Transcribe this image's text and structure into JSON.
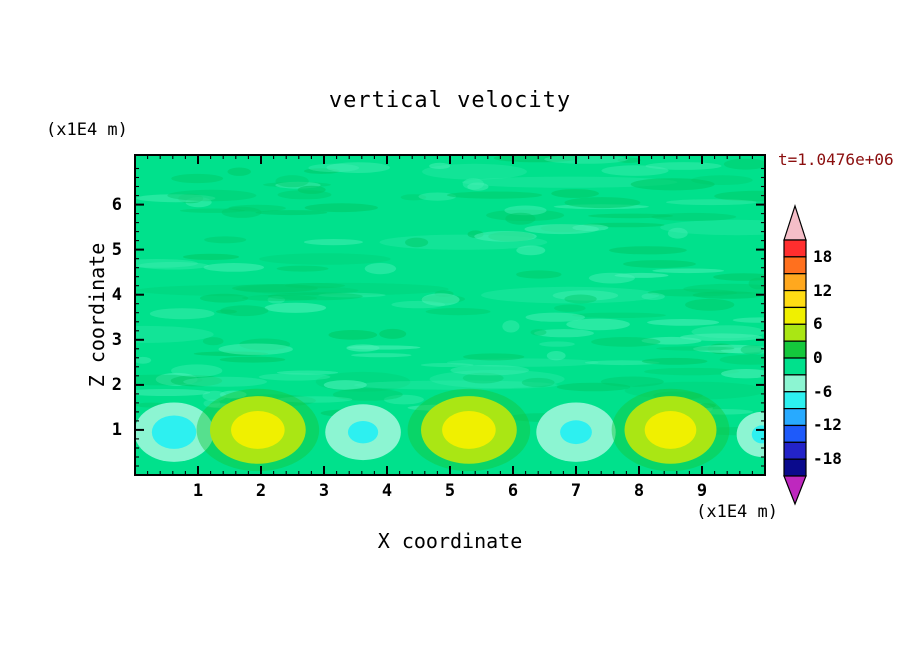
{
  "chart_data": {
    "type": "heatmap",
    "title": "vertical velocity",
    "time_annotation": "t=1.0476e+06",
    "time_color": "#8B0E0E",
    "xlabel": "X coordinate",
    "x_unit": "(x1E4 m)",
    "ylabel": "Z coordinate",
    "y_unit": "(x1E4 m)",
    "xlim": [
      0,
      10
    ],
    "ylim": [
      0,
      7.1
    ],
    "x_ticks": [
      1,
      2,
      3,
      4,
      5,
      6,
      7,
      8,
      9
    ],
    "y_ticks": [
      1,
      2,
      3,
      4,
      5,
      6
    ],
    "contour_interval": 3,
    "colorbar": {
      "labels": [
        18,
        12,
        6,
        0,
        -6,
        -12,
        -18
      ],
      "value_top": 21,
      "value_bottom": -21,
      "boxes": [
        {
          "range": [
            18,
            21
          ],
          "color": "#FF2E2E"
        },
        {
          "range": [
            15,
            18
          ],
          "color": "#FF701E"
        },
        {
          "range": [
            12,
            15
          ],
          "color": "#FFA81E"
        },
        {
          "range": [
            9,
            12
          ],
          "color": "#FFDC14"
        },
        {
          "range": [
            6,
            9
          ],
          "color": "#F0F000"
        },
        {
          "range": [
            3,
            6
          ],
          "color": "#AAE614"
        },
        {
          "range": [
            0,
            3
          ],
          "color": "#14C83C"
        },
        {
          "range": [
            -3,
            0
          ],
          "color": "#00E18C"
        },
        {
          "range": [
            -6,
            -3
          ],
          "color": "#8CF5D2"
        },
        {
          "range": [
            -9,
            -6
          ],
          "color": "#2DF0F0"
        },
        {
          "range": [
            -12,
            -9
          ],
          "color": "#28AAFF"
        },
        {
          "range": [
            -15,
            -12
          ],
          "color": "#1E5AFA"
        },
        {
          "range": [
            -18,
            -15
          ],
          "color": "#2323C8"
        },
        {
          "range": [
            -21,
            -18
          ],
          "color": "#0A0A8C"
        }
      ],
      "over_color": "#F5BEC8",
      "under_color": "#BE28BE"
    },
    "field": {
      "description": "Near-zero vertical velocity aloft with mottled +/-3 noise; alternating rising (positive, yellow) and sinking (negative, cyan) convective cells centered near z=1",
      "background_band": [
        -3,
        0
      ],
      "base_color": "#00E18C",
      "mottle_dark": "#00C968",
      "mottle_light": "#49F0B6",
      "cells": [
        {
          "x": 0.62,
          "z": 0.95,
          "peak": -9,
          "rx": 0.63,
          "rz": 0.66
        },
        {
          "x": 1.95,
          "z": 1.0,
          "peak": 10,
          "rx": 0.76,
          "rz": 0.75
        },
        {
          "x": 3.62,
          "z": 0.95,
          "peak": -7,
          "rx": 0.6,
          "rz": 0.62
        },
        {
          "x": 5.3,
          "z": 1.0,
          "peak": 10,
          "rx": 0.76,
          "rz": 0.75
        },
        {
          "x": 7.0,
          "z": 0.95,
          "peak": -8,
          "rx": 0.63,
          "rz": 0.66
        },
        {
          "x": 8.5,
          "z": 1.0,
          "peak": 10,
          "rx": 0.73,
          "rz": 0.75
        },
        {
          "x": 9.95,
          "z": 0.9,
          "peak": -6,
          "rx": 0.4,
          "rz": 0.5
        }
      ]
    }
  }
}
